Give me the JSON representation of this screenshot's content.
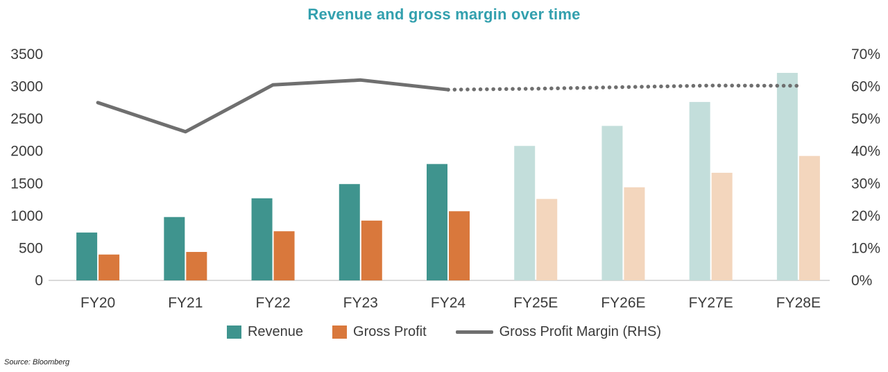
{
  "title": "Revenue and gross margin over time",
  "source": "Source: Bloomberg",
  "colors": {
    "title": "#33a0ae",
    "axis_text": "#3b3b3b",
    "baseline": "#d9d9d9"
  },
  "chart_data": {
    "type": "bar+line",
    "title": "Revenue and gross margin over time",
    "categories": [
      "FY20",
      "FY21",
      "FY22",
      "FY23",
      "FY24",
      "FY25E",
      "FY26E",
      "FY27E",
      "FY28E"
    ],
    "forecast_start_index": 5,
    "series": [
      {
        "name": "Revenue",
        "type": "bar",
        "axis": "left",
        "color": "#3f948e",
        "forecast_color": "#c3dedb",
        "values": [
          740,
          980,
          1270,
          1490,
          1800,
          2080,
          2390,
          2760,
          3210
        ]
      },
      {
        "name": "Gross Profit",
        "type": "bar",
        "axis": "left",
        "color": "#d9783c",
        "forecast_color": "#f3d6bd",
        "values": [
          400,
          440,
          760,
          925,
          1070,
          1260,
          1440,
          1665,
          1925
        ]
      },
      {
        "name": "Gross Profit Margin (RHS)",
        "type": "line",
        "axis": "right",
        "color": "#6f6f6f",
        "solid_until_index": 4,
        "values": [
          55,
          46,
          60.5,
          62,
          59,
          59.3,
          59.8,
          60.3,
          60.2
        ]
      }
    ],
    "left_axis": {
      "min": 0,
      "max": 3500,
      "step": 500,
      "ticks": [
        "0",
        "500",
        "1000",
        "1500",
        "2000",
        "2500",
        "3000",
        "3500"
      ]
    },
    "right_axis": {
      "min": 0,
      "max": 70,
      "step": 10,
      "ticks": [
        "0%",
        "10%",
        "20%",
        "30%",
        "40%",
        "50%",
        "60%",
        "70%"
      ]
    },
    "grid": false,
    "legend_position": "bottom",
    "baseline_color": "#d9d9d9"
  }
}
